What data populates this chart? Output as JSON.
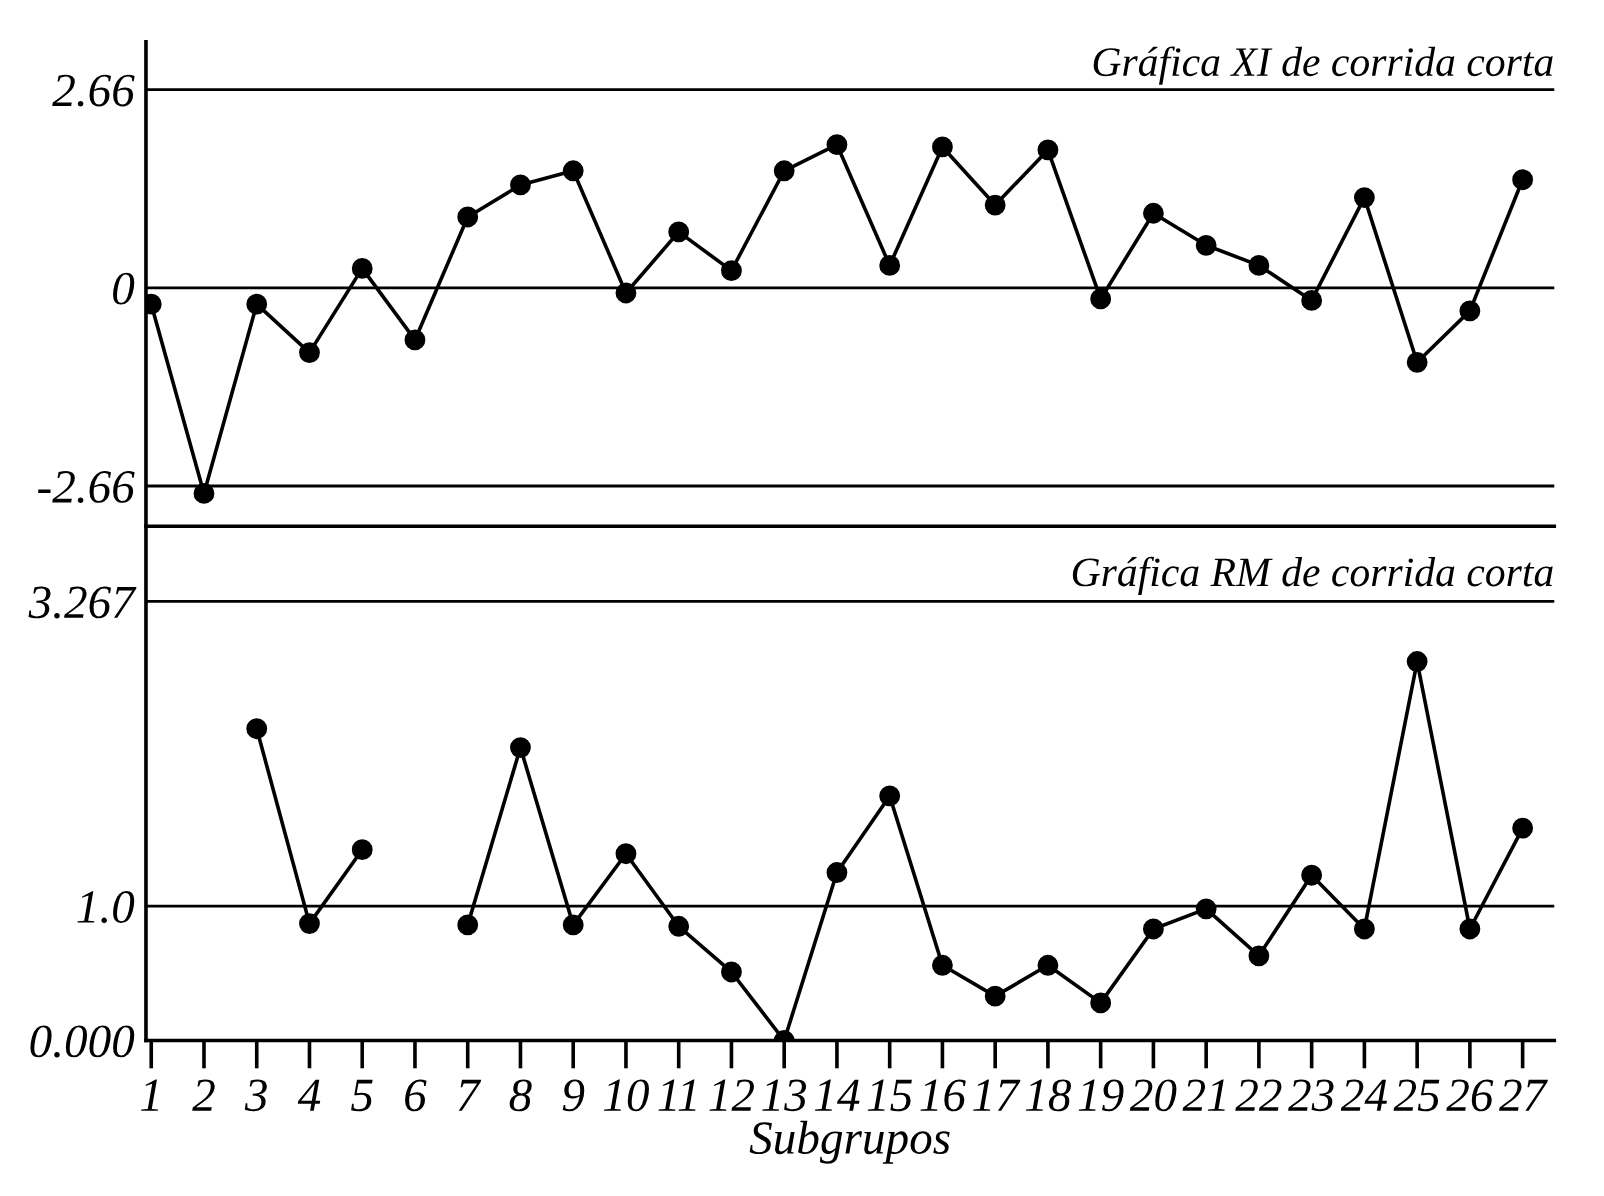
{
  "chart_data": [
    {
      "type": "line",
      "title": "Gráfica XI de corrida corta",
      "categories": [
        "1",
        "2",
        "3",
        "4",
        "5",
        "6",
        "7",
        "8",
        "9",
        "10",
        "11",
        "12",
        "13",
        "14",
        "15",
        "16",
        "17",
        "18",
        "19",
        "20",
        "21",
        "22",
        "23",
        "24",
        "25",
        "26",
        "27"
      ],
      "series": [
        {
          "color": "#000000",
          "values": [
            -0.22,
            -2.76,
            -0.22,
            -0.87,
            0.26,
            -0.7,
            0.95,
            1.38,
            1.57,
            -0.07,
            0.75,
            0.23,
            1.57,
            1.92,
            0.3,
            1.89,
            1.11,
            1.85,
            -0.15,
            1.0,
            0.57,
            0.3,
            -0.17,
            1.21,
            -1.0,
            -0.31,
            1.45
          ]
        }
      ],
      "ylim": [
        -3.2,
        3.3
      ],
      "yticks": [
        2.66,
        0,
        -2.66
      ],
      "ref_lines": [
        {
          "axis": "y",
          "value": 2.66,
          "color": "#000000"
        },
        {
          "axis": "y",
          "value": 0,
          "color": "#000000"
        },
        {
          "axis": "y",
          "value": -2.66,
          "color": "#000000"
        }
      ],
      "tick_labels": "y",
      "grid": false,
      "marker": "circle",
      "line_style": "solid"
    },
    {
      "type": "line",
      "title": "Gráfica RM de corrida corta",
      "xlabel": "Subgrupos",
      "categories": [
        "1",
        "2",
        "3",
        "4",
        "5",
        "6",
        "7",
        "8",
        "9",
        "10",
        "11",
        "12",
        "13",
        "14",
        "15",
        "16",
        "17",
        "18",
        "19",
        "20",
        "21",
        "22",
        "23",
        "24",
        "25",
        "26",
        "27"
      ],
      "series": [
        {
          "color": "#000000",
          "values": [
            null,
            null,
            2.32,
            0.87,
            1.42,
            null,
            0.86,
            2.18,
            0.86,
            1.39,
            0.85,
            0.51,
            0.0,
            1.25,
            1.82,
            0.56,
            0.33,
            0.56,
            0.28,
            0.83,
            0.98,
            0.63,
            1.23,
            0.83,
            2.82,
            0.83,
            1.58
          ]
        }
      ],
      "ylim": [
        0,
        3.8
      ],
      "yticks": [
        {
          "value": 0,
          "label": "0.000"
        },
        {
          "value": 1,
          "label": "1.0"
        },
        3.267
      ],
      "ref_lines": [
        {
          "axis": "y",
          "value": 1,
          "color": "#000000"
        },
        {
          "axis": "y",
          "value": 3.267,
          "color": "#000000"
        }
      ],
      "grid": false,
      "marker": "circle",
      "line_style": "solid"
    }
  ]
}
